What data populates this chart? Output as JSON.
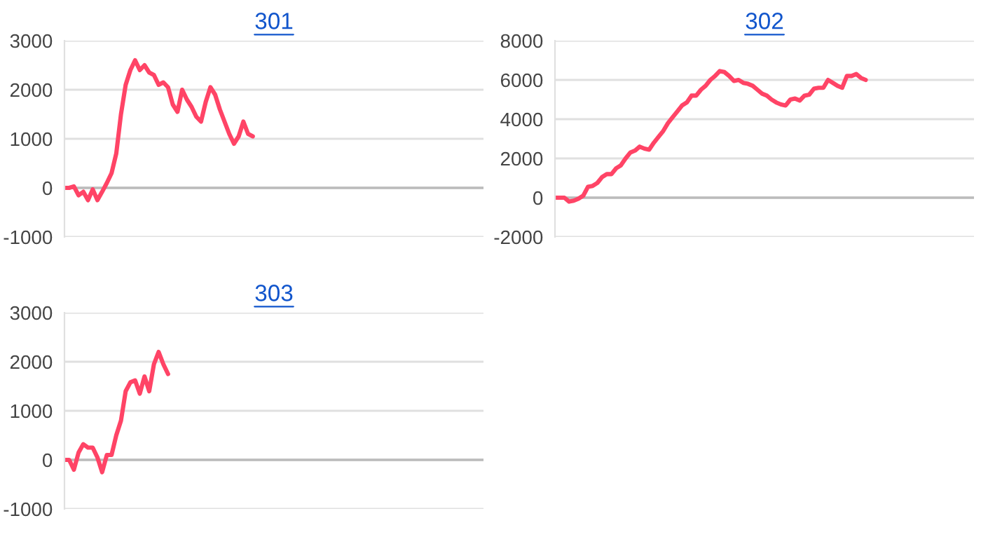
{
  "chart_data": [
    {
      "type": "line",
      "title": "301",
      "categories": [
        null,
        null,
        null,
        null,
        null,
        null,
        null,
        null,
        null,
        null,
        null,
        null,
        null,
        null,
        null,
        null,
        null,
        null,
        null,
        null,
        null,
        null,
        null,
        null,
        null,
        null,
        null,
        null,
        null,
        null,
        null,
        null,
        null,
        null,
        null,
        null,
        null,
        null,
        null,
        null,
        null,
        null,
        null,
        null,
        null,
        null,
        null,
        null,
        null,
        null,
        null,
        null,
        null,
        null,
        null,
        null,
        null,
        null,
        null,
        null,
        null,
        null,
        null,
        null,
        null,
        null,
        null,
        null,
        null,
        null,
        null,
        null,
        null,
        null,
        null,
        null,
        null,
        null,
        null,
        null,
        null,
        null,
        null,
        null,
        null,
        null,
        null,
        null,
        null,
        null
      ],
      "series": [
        {
          "color": "#ff4466",
          "values": [
            0,
            0,
            30,
            -150,
            -80,
            -250,
            -30,
            -250,
            -80,
            100,
            300,
            700,
            1500,
            2100,
            2400,
            2600,
            2400,
            2500,
            2350,
            2300,
            2100,
            2150,
            2050,
            1700,
            1550,
            2000,
            1800,
            1650,
            1450,
            1350,
            1750,
            2050,
            1900,
            1600,
            1350,
            1100,
            900,
            1050,
            1350,
            1100,
            1050,
            null,
            null,
            null,
            null,
            null,
            null,
            null,
            null,
            null,
            null,
            null,
            null,
            null,
            null,
            null,
            null,
            null,
            null,
            null,
            null,
            null,
            null,
            null,
            null,
            null,
            null,
            null,
            null,
            null,
            null,
            null,
            null,
            null,
            null,
            null,
            null,
            null,
            null,
            null,
            null,
            null,
            null,
            null,
            null,
            null,
            null,
            null,
            null,
            null
          ]
        }
      ],
      "ylim": [
        -1000,
        3000
      ],
      "yticks": [
        -1000,
        0,
        1000,
        2000,
        3000
      ],
      "grid": "y",
      "tick_labels": "y",
      "ref_lines": [
        {
          "axis": "y",
          "value": 0,
          "color": "#bbbbbb"
        }
      ]
    },
    {
      "type": "line",
      "title": "302",
      "categories": [
        null,
        null,
        null,
        null,
        null,
        null,
        null,
        null,
        null,
        null,
        null,
        null,
        null,
        null,
        null,
        null,
        null,
        null,
        null,
        null,
        null,
        null,
        null,
        null,
        null,
        null,
        null,
        null,
        null,
        null,
        null,
        null,
        null,
        null,
        null,
        null,
        null,
        null,
        null,
        null,
        null,
        null,
        null,
        null,
        null,
        null,
        null,
        null,
        null,
        null,
        null,
        null,
        null,
        null,
        null,
        null,
        null,
        null,
        null,
        null,
        null,
        null,
        null,
        null,
        null,
        null,
        null,
        null,
        null,
        null,
        null,
        null,
        null,
        null,
        null,
        null,
        null,
        null,
        null,
        null,
        null,
        null,
        null,
        null,
        null,
        null,
        null,
        null,
        null,
        null
      ],
      "series": [
        {
          "color": "#ff4466",
          "values": [
            0,
            0,
            0,
            -200,
            -150,
            -50,
            100,
            550,
            600,
            750,
            1050,
            1200,
            1200,
            1500,
            1650,
            2000,
            2300,
            2400,
            2600,
            2500,
            2450,
            2800,
            3100,
            3400,
            3800,
            4100,
            4400,
            4700,
            4850,
            5200,
            5200,
            5500,
            5700,
            6000,
            6200,
            6450,
            6400,
            6200,
            5950,
            6000,
            5850,
            5800,
            5700,
            5500,
            5300,
            5200,
            5000,
            4850,
            4750,
            4700,
            5000,
            5050,
            4950,
            5200,
            5250,
            5550,
            5600,
            5600,
            6000,
            5850,
            5700,
            5600,
            6200,
            6200,
            6300,
            6100,
            6000,
            null,
            null,
            null,
            null,
            null,
            null,
            null,
            null,
            null,
            null,
            null,
            null,
            null,
            null,
            null,
            null,
            null,
            null,
            null,
            null,
            null,
            null,
            null
          ]
        }
      ],
      "ylim": [
        -2000,
        8000
      ],
      "yticks": [
        -2000,
        0,
        2000,
        4000,
        6000,
        8000
      ],
      "grid": "y",
      "tick_labels": "y",
      "ref_lines": [
        {
          "axis": "y",
          "value": 0,
          "color": "#bbbbbb"
        }
      ]
    },
    {
      "type": "line",
      "title": "303",
      "categories": [
        null,
        null,
        null,
        null,
        null,
        null,
        null,
        null,
        null,
        null,
        null,
        null,
        null,
        null,
        null,
        null,
        null,
        null,
        null,
        null,
        null,
        null,
        null,
        null,
        null,
        null,
        null,
        null,
        null,
        null,
        null,
        null,
        null,
        null,
        null,
        null,
        null,
        null,
        null,
        null,
        null,
        null,
        null,
        null,
        null,
        null,
        null,
        null,
        null,
        null,
        null,
        null,
        null,
        null,
        null,
        null,
        null,
        null,
        null,
        null,
        null,
        null,
        null,
        null,
        null,
        null,
        null,
        null,
        null,
        null,
        null,
        null,
        null,
        null,
        null,
        null,
        null,
        null,
        null,
        null,
        null,
        null,
        null,
        null,
        null,
        null,
        null,
        null,
        null,
        null
      ],
      "series": [
        {
          "color": "#ff4466",
          "values": [
            0,
            0,
            -200,
            150,
            320,
            250,
            250,
            50,
            -250,
            100,
            100,
            500,
            800,
            1400,
            1580,
            1620,
            1350,
            1700,
            1400,
            1950,
            2200,
            1950,
            1750,
            null,
            null,
            null,
            null,
            null,
            null,
            null,
            null,
            null,
            null,
            null,
            null,
            null,
            null,
            null,
            null,
            null,
            null,
            null,
            null,
            null,
            null,
            null,
            null,
            null,
            null,
            null,
            null,
            null,
            null,
            null,
            null,
            null,
            null,
            null,
            null,
            null,
            null,
            null,
            null,
            null,
            null,
            null,
            null,
            null,
            null,
            null,
            null,
            null,
            null,
            null,
            null,
            null,
            null,
            null,
            null,
            null,
            null,
            null,
            null,
            null,
            null,
            null,
            null,
            null,
            null,
            null
          ]
        }
      ],
      "ylim": [
        -1000,
        3000
      ],
      "yticks": [
        -1000,
        0,
        1000,
        2000,
        3000
      ],
      "grid": "y",
      "tick_labels": "y",
      "ref_lines": [
        {
          "axis": "y",
          "value": 0,
          "color": "#bbbbbb"
        }
      ]
    }
  ]
}
